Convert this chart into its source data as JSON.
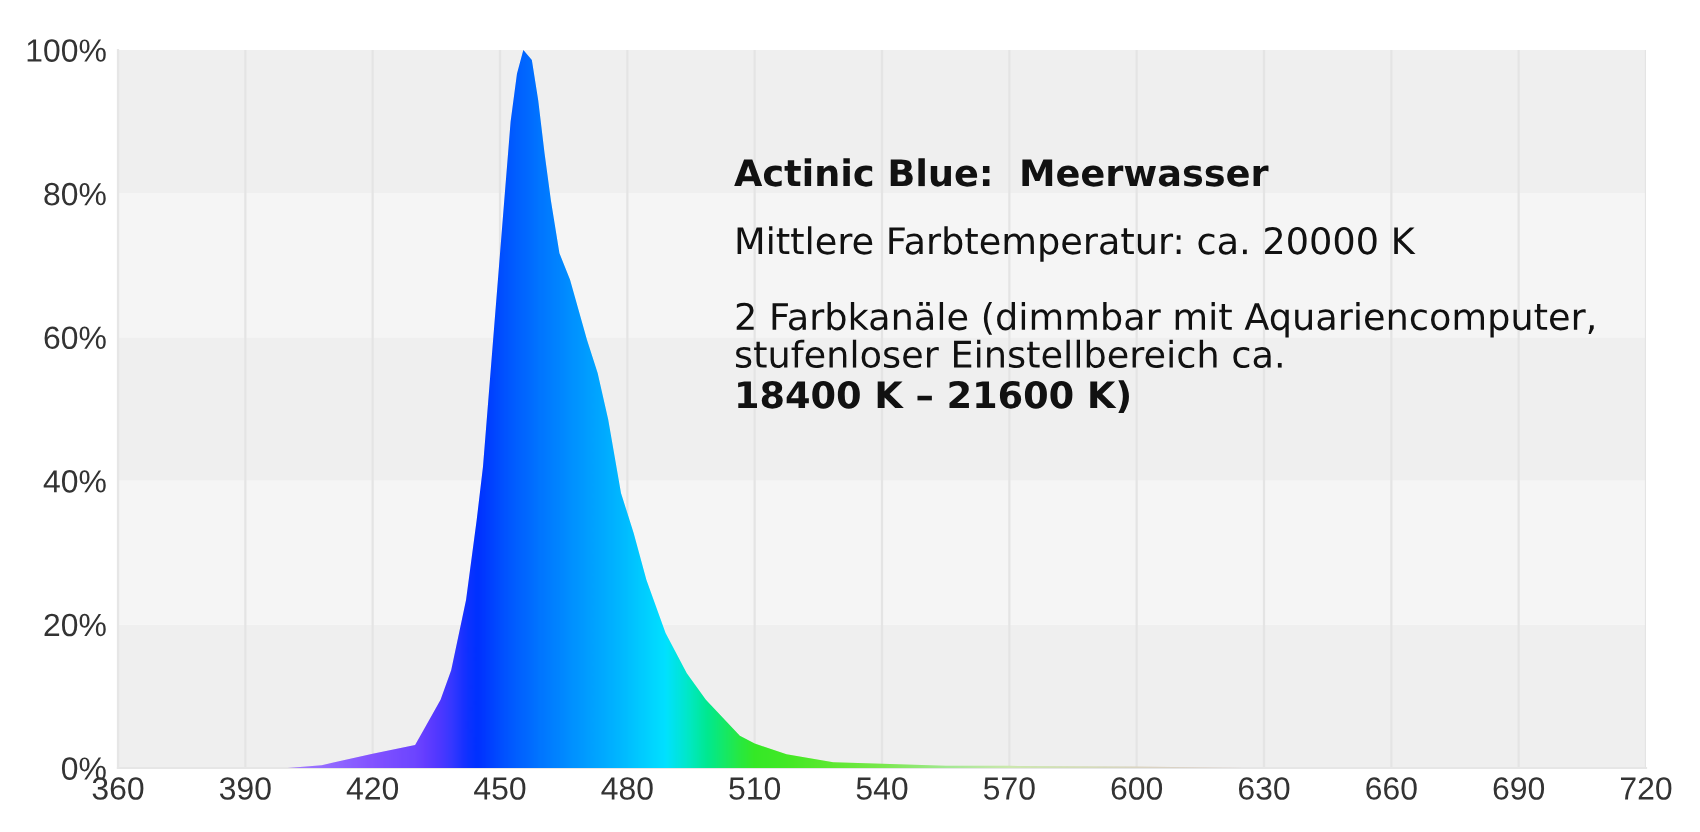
{
  "chart_data": {
    "type": "area",
    "title": "Actinic Blue:  Meerwasser",
    "annotations": [
      "Mittlere Farbtemperatur: ca. 20000 K",
      "2 Farbkanäle (dimmbar mit Aquariencomputer,\nstufenloser Einstellbereich ca.",
      "18400 K – 21600 K)"
    ],
    "x": [
      400,
      408,
      420,
      430,
      432,
      436,
      438.5,
      442,
      444.5,
      446,
      448.5,
      451,
      452.5,
      454,
      455.5,
      457.5,
      459,
      460.5,
      462,
      464,
      466.5,
      470.5,
      473,
      475.5,
      478.5,
      481.5,
      484.5,
      489,
      494,
      498.5,
      506.5,
      510,
      517.5,
      528.5,
      540,
      555,
      570,
      600,
      625
    ],
    "series": [
      {
        "values": [
          0,
          0.4,
          2,
          3.2,
          5.3,
          9.5,
          13.6,
          23.4,
          34.5,
          42,
          60.5,
          79,
          90,
          96.7,
          100,
          98.6,
          93,
          85.6,
          79,
          71.7,
          68,
          59.6,
          55,
          48.5,
          38.3,
          32.7,
          26.2,
          18.8,
          13.2,
          9.5,
          4.5,
          3.4,
          1.9,
          0.8,
          0.6,
          0.3,
          0.3,
          0.2,
          0
        ],
        "colors": [
          "#c080ff",
          "#b070ff",
          "#9a50ff",
          "#8040ff",
          "#7838ff",
          "#5a30ff",
          "#4030ff",
          "#1428ff",
          "#0028ff",
          "#0030ff",
          "#0040ff",
          "#0050ff",
          "#0058ff",
          "#0060ff",
          "#0066ff",
          "#0070ff",
          "#0078ff",
          "#007eff",
          "#0084ff",
          "#008cff",
          "#0098ff",
          "#00a8ff",
          "#00b2ff",
          "#00bcff",
          "#00c8ff",
          "#00d6ff",
          "#00e4ff",
          "#00f8ff",
          "#00ffc0",
          "#00ff80",
          "#30ff20",
          "#40ff00",
          "#50ff00",
          "#70ff10",
          "#90ff30",
          "#c0ff80",
          "#f0ffa0",
          "#ffe8b8",
          "#ffe0c0"
        ]
      }
    ],
    "xlim": [
      360,
      720
    ],
    "xticks": [
      360,
      390,
      420,
      450,
      480,
      510,
      540,
      570,
      600,
      630,
      660,
      690,
      720
    ],
    "ylim": [
      0,
      100
    ],
    "yticks": [
      {
        "value": 0,
        "label": "0%"
      },
      {
        "value": 20,
        "label": "20%"
      },
      {
        "value": 40,
        "label": "40%"
      },
      {
        "value": 60,
        "label": "60%"
      },
      {
        "value": 80,
        "label": "80%"
      },
      {
        "value": 100,
        "label": "100%"
      }
    ],
    "grid": true
  }
}
